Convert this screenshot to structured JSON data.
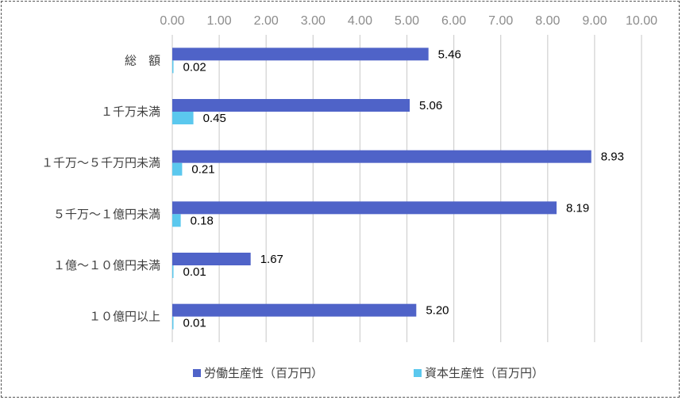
{
  "chart_data": {
    "type": "bar",
    "orientation": "horizontal",
    "title": "",
    "xlabel": "",
    "ylabel": "",
    "xlim": [
      0,
      10
    ],
    "xticks": [
      "0.00",
      "1.00",
      "2.00",
      "3.00",
      "4.00",
      "5.00",
      "6.00",
      "7.00",
      "8.00",
      "9.00",
      "10.00"
    ],
    "x_axis_position": "top",
    "grid": true,
    "legend_position": "bottom",
    "categories": [
      "総　額",
      "１千万未満",
      "１千万～５千万円未満",
      "５千万～１億円未満",
      "１億～１０億円未満",
      "１０億円以上"
    ],
    "series": [
      {
        "name": "労働生産性（百万円）",
        "color": "#4f63c8",
        "values": [
          5.46,
          5.06,
          8.93,
          8.19,
          1.67,
          5.2
        ],
        "labels": [
          "5.46",
          "5.06",
          "8.93",
          "8.19",
          "1.67",
          "5.20"
        ]
      },
      {
        "name": "資本生産性（百万円）",
        "color": "#5bc8ee",
        "values": [
          0.02,
          0.45,
          0.21,
          0.18,
          0.01,
          0.01
        ],
        "labels": [
          "0.02",
          "0.45",
          "0.21",
          "0.18",
          "0.01",
          "0.01"
        ]
      }
    ]
  }
}
